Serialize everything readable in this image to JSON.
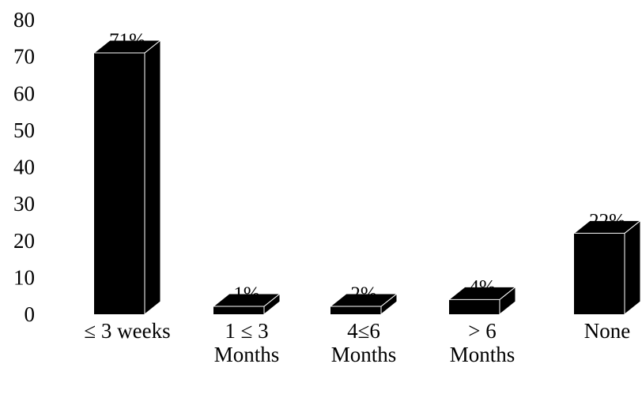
{
  "chart_data": {
    "type": "bar",
    "style": "3d",
    "categories": [
      [
        "≤ 3 weeks"
      ],
      [
        "1 ≤ 3",
        "Months"
      ],
      [
        "4≤6",
        "Months"
      ],
      [
        "> 6",
        "Months"
      ],
      [
        "None"
      ]
    ],
    "values": [
      71,
      1,
      2,
      4,
      22
    ],
    "data_labels": [
      "71%",
      "1%",
      "2%",
      "4%",
      "22%"
    ],
    "ylim": [
      0,
      80
    ],
    "yticks": [
      "0",
      "10",
      "20",
      "30",
      "40",
      "50",
      "60",
      "70",
      "80"
    ],
    "grid": false,
    "legend": "none",
    "bar_color": "#000000"
  }
}
